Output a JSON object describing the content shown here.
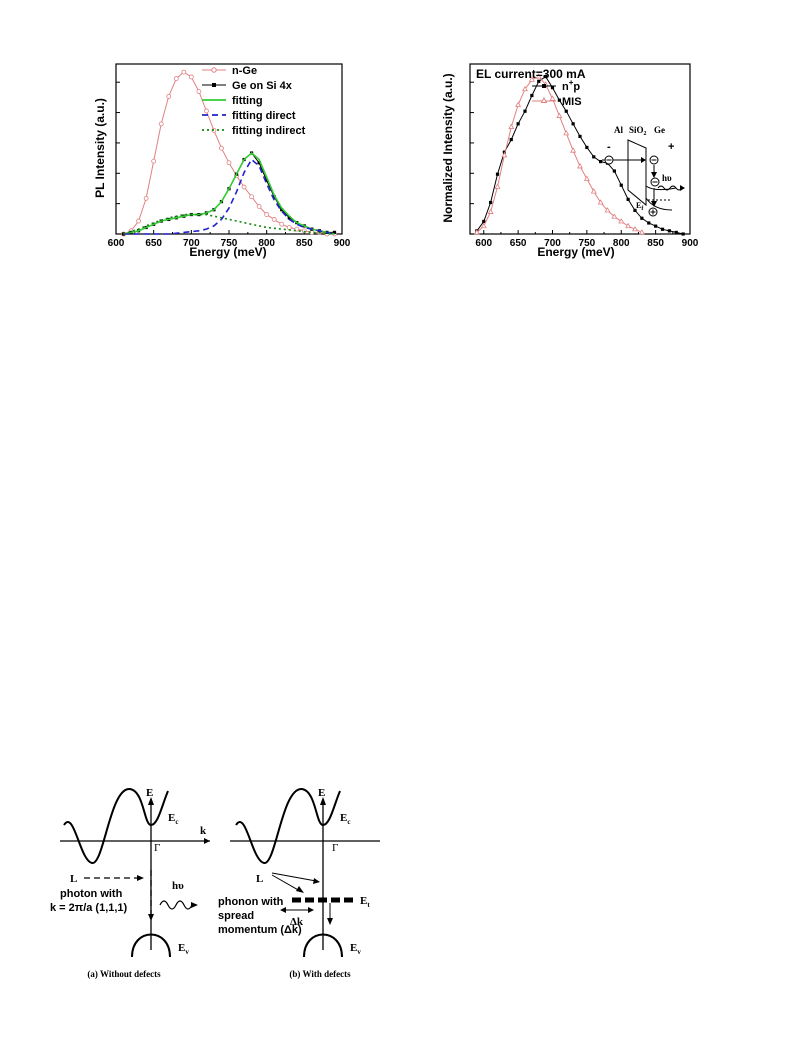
{
  "chart_data": [
    {
      "type": "line",
      "xlabel": "Energy (meV)",
      "ylabel": "PL Intensity (a.u.)",
      "xlim": [
        600,
        900
      ],
      "xticks": [
        "600",
        "650",
        "700",
        "750",
        "800",
        "850",
        "900"
      ],
      "ylim": [
        0,
        1.05
      ],
      "y_tick_labels_shown": false,
      "legend_position": "top-right",
      "series": [
        {
          "name": "n-Ge",
          "color": "#e08080",
          "marker": "open-circle",
          "x": [
            610,
            620,
            630,
            640,
            650,
            660,
            670,
            680,
            690,
            700,
            710,
            720,
            730,
            740,
            750,
            760,
            770,
            780,
            790,
            800,
            810,
            820,
            830,
            840,
            850,
            860,
            870,
            880,
            890
          ],
          "y": [
            0.0,
            0.02,
            0.08,
            0.22,
            0.45,
            0.68,
            0.85,
            0.96,
            1.0,
            0.97,
            0.88,
            0.76,
            0.64,
            0.53,
            0.44,
            0.36,
            0.29,
            0.23,
            0.17,
            0.12,
            0.09,
            0.06,
            0.04,
            0.03,
            0.02,
            0.01,
            0.01,
            0.0,
            0.0
          ]
        },
        {
          "name": "Ge on Si 4x",
          "color": "#000000",
          "marker": "filled-square",
          "x": [
            610,
            620,
            630,
            640,
            650,
            660,
            670,
            680,
            690,
            700,
            710,
            720,
            730,
            740,
            750,
            760,
            770,
            780,
            790,
            800,
            810,
            820,
            830,
            840,
            850,
            860,
            870,
            880,
            890
          ],
          "y": [
            0.0,
            0.01,
            0.02,
            0.04,
            0.06,
            0.08,
            0.09,
            0.1,
            0.11,
            0.12,
            0.12,
            0.13,
            0.15,
            0.2,
            0.28,
            0.37,
            0.46,
            0.5,
            0.44,
            0.33,
            0.23,
            0.15,
            0.1,
            0.07,
            0.05,
            0.03,
            0.02,
            0.01,
            0.01
          ]
        },
        {
          "name": "fitting",
          "color": "#33cc33",
          "dash": "solid",
          "x": [
            610,
            620,
            630,
            640,
            650,
            660,
            670,
            680,
            690,
            700,
            710,
            720,
            730,
            740,
            750,
            760,
            770,
            780,
            790,
            800,
            810,
            820,
            830,
            840,
            850,
            860,
            870,
            880,
            890
          ],
          "y": [
            0.0,
            0.01,
            0.02,
            0.04,
            0.06,
            0.08,
            0.09,
            0.1,
            0.11,
            0.12,
            0.12,
            0.13,
            0.15,
            0.2,
            0.28,
            0.37,
            0.46,
            0.5,
            0.46,
            0.35,
            0.24,
            0.16,
            0.11,
            0.07,
            0.05,
            0.03,
            0.02,
            0.01,
            0.0
          ]
        },
        {
          "name": "fitting direct",
          "color": "#2222cc",
          "dash": "6,4",
          "x": [
            610,
            630,
            650,
            670,
            690,
            710,
            720,
            730,
            740,
            750,
            760,
            770,
            780,
            790,
            800,
            810,
            820,
            830,
            840,
            850,
            870,
            890
          ],
          "y": [
            0.0,
            0.0,
            0.0,
            0.0,
            0.01,
            0.02,
            0.03,
            0.05,
            0.09,
            0.16,
            0.26,
            0.38,
            0.46,
            0.42,
            0.31,
            0.21,
            0.14,
            0.09,
            0.06,
            0.04,
            0.02,
            0.0
          ]
        },
        {
          "name": "fitting indirect",
          "color": "#118811",
          "dash": "2,3",
          "x": [
            610,
            630,
            650,
            670,
            690,
            700,
            710,
            720,
            730,
            740,
            750,
            760,
            770,
            780,
            790,
            800,
            820,
            840,
            860,
            890
          ],
          "y": [
            0.0,
            0.03,
            0.07,
            0.1,
            0.12,
            0.12,
            0.12,
            0.12,
            0.11,
            0.1,
            0.09,
            0.08,
            0.07,
            0.06,
            0.05,
            0.04,
            0.03,
            0.02,
            0.01,
            0.0
          ]
        }
      ]
    },
    {
      "type": "line",
      "title": "EL current=300 mA",
      "xlabel": "Energy (meV)",
      "ylabel": "Normalized Intensity (a.u.)",
      "xlim": [
        580,
        900
      ],
      "xticks": [
        "600",
        "650",
        "700",
        "750",
        "800",
        "850",
        "900"
      ],
      "ylim": [
        0,
        1.08
      ],
      "y_tick_labels_shown": false,
      "legend_position": "top-center",
      "series": [
        {
          "name": "n+p",
          "color": "#000000",
          "marker": "filled-square",
          "x": [
            590,
            600,
            610,
            620,
            630,
            640,
            650,
            660,
            670,
            680,
            690,
            700,
            710,
            720,
            730,
            740,
            750,
            760,
            770,
            780,
            790,
            800,
            810,
            820,
            830,
            840,
            850,
            860,
            870,
            880,
            890
          ],
          "y": [
            0.02,
            0.08,
            0.2,
            0.38,
            0.52,
            0.6,
            0.7,
            0.78,
            0.88,
            0.97,
            1.0,
            0.93,
            0.85,
            0.78,
            0.7,
            0.62,
            0.55,
            0.49,
            0.46,
            0.45,
            0.4,
            0.31,
            0.22,
            0.15,
            0.1,
            0.07,
            0.05,
            0.03,
            0.02,
            0.01,
            0.0
          ]
        },
        {
          "name": "MIS",
          "color": "#e08080",
          "marker": "open-triangle",
          "x": [
            590,
            600,
            610,
            620,
            630,
            640,
            650,
            660,
            670,
            680,
            690,
            700,
            710,
            720,
            730,
            740,
            750,
            760,
            770,
            780,
            790,
            800,
            810,
            820,
            830
          ],
          "y": [
            0.01,
            0.05,
            0.14,
            0.3,
            0.5,
            0.68,
            0.82,
            0.92,
            0.98,
            1.0,
            0.95,
            0.86,
            0.75,
            0.64,
            0.53,
            0.43,
            0.35,
            0.27,
            0.2,
            0.15,
            0.11,
            0.08,
            0.05,
            0.03,
            0.01
          ]
        }
      ]
    }
  ],
  "inset": {
    "labels": {
      "al": "Al",
      "sio2": "SiO",
      "sio2_sub": "2",
      "ge": "Ge",
      "minus": "-",
      "plus": "+",
      "hv": "hυ",
      "ef": "E",
      "ef_sub": "f"
    }
  },
  "band_diagram": {
    "e_axis": "E",
    "k_axis": "k",
    "ec": "E",
    "ec_sub": "c",
    "ev": "E",
    "ev_sub": "v",
    "et": "E",
    "et_sub": "t",
    "gamma": "Γ",
    "l_point": "L",
    "hv": "hυ",
    "photon_line1": "photon with",
    "photon_line2": "k = 2π/a (1,1,1)",
    "phonon_line1": "phonon with",
    "phonon_line2": "spread",
    "phonon_line3": "momentum (Δk)",
    "delta_k": "Δk",
    "caption_a": "(a) Without defects",
    "caption_b": "(b) With defects"
  }
}
